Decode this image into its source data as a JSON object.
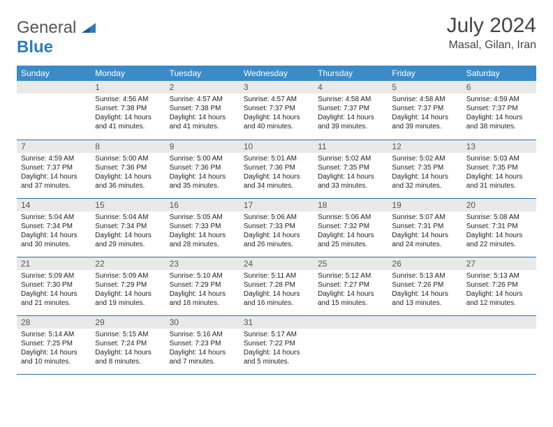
{
  "brand": {
    "part1": "General",
    "part2": "Blue"
  },
  "title": "July 2024",
  "location": "Masal, Gilan, Iran",
  "colors": {
    "header_bg": "#3b8bc9",
    "header_text": "#ffffff",
    "daynum_bg": "#e9e9e9",
    "row_divider": "#2a6ea5",
    "brand_blue": "#2f7bbf",
    "text": "#222222"
  },
  "weekdays": [
    "Sunday",
    "Monday",
    "Tuesday",
    "Wednesday",
    "Thursday",
    "Friday",
    "Saturday"
  ],
  "weeks": [
    [
      null,
      {
        "n": "1",
        "sr": "4:56 AM",
        "ss": "7:38 PM",
        "dl": "14 hours and 41 minutes."
      },
      {
        "n": "2",
        "sr": "4:57 AM",
        "ss": "7:38 PM",
        "dl": "14 hours and 41 minutes."
      },
      {
        "n": "3",
        "sr": "4:57 AM",
        "ss": "7:37 PM",
        "dl": "14 hours and 40 minutes."
      },
      {
        "n": "4",
        "sr": "4:58 AM",
        "ss": "7:37 PM",
        "dl": "14 hours and 39 minutes."
      },
      {
        "n": "5",
        "sr": "4:58 AM",
        "ss": "7:37 PM",
        "dl": "14 hours and 39 minutes."
      },
      {
        "n": "6",
        "sr": "4:59 AM",
        "ss": "7:37 PM",
        "dl": "14 hours and 38 minutes."
      }
    ],
    [
      {
        "n": "7",
        "sr": "4:59 AM",
        "ss": "7:37 PM",
        "dl": "14 hours and 37 minutes."
      },
      {
        "n": "8",
        "sr": "5:00 AM",
        "ss": "7:36 PM",
        "dl": "14 hours and 36 minutes."
      },
      {
        "n": "9",
        "sr": "5:00 AM",
        "ss": "7:36 PM",
        "dl": "14 hours and 35 minutes."
      },
      {
        "n": "10",
        "sr": "5:01 AM",
        "ss": "7:36 PM",
        "dl": "14 hours and 34 minutes."
      },
      {
        "n": "11",
        "sr": "5:02 AM",
        "ss": "7:35 PM",
        "dl": "14 hours and 33 minutes."
      },
      {
        "n": "12",
        "sr": "5:02 AM",
        "ss": "7:35 PM",
        "dl": "14 hours and 32 minutes."
      },
      {
        "n": "13",
        "sr": "5:03 AM",
        "ss": "7:35 PM",
        "dl": "14 hours and 31 minutes."
      }
    ],
    [
      {
        "n": "14",
        "sr": "5:04 AM",
        "ss": "7:34 PM",
        "dl": "14 hours and 30 minutes."
      },
      {
        "n": "15",
        "sr": "5:04 AM",
        "ss": "7:34 PM",
        "dl": "14 hours and 29 minutes."
      },
      {
        "n": "16",
        "sr": "5:05 AM",
        "ss": "7:33 PM",
        "dl": "14 hours and 28 minutes."
      },
      {
        "n": "17",
        "sr": "5:06 AM",
        "ss": "7:33 PM",
        "dl": "14 hours and 26 minutes."
      },
      {
        "n": "18",
        "sr": "5:06 AM",
        "ss": "7:32 PM",
        "dl": "14 hours and 25 minutes."
      },
      {
        "n": "19",
        "sr": "5:07 AM",
        "ss": "7:31 PM",
        "dl": "14 hours and 24 minutes."
      },
      {
        "n": "20",
        "sr": "5:08 AM",
        "ss": "7:31 PM",
        "dl": "14 hours and 22 minutes."
      }
    ],
    [
      {
        "n": "21",
        "sr": "5:09 AM",
        "ss": "7:30 PM",
        "dl": "14 hours and 21 minutes."
      },
      {
        "n": "22",
        "sr": "5:09 AM",
        "ss": "7:29 PM",
        "dl": "14 hours and 19 minutes."
      },
      {
        "n": "23",
        "sr": "5:10 AM",
        "ss": "7:29 PM",
        "dl": "14 hours and 18 minutes."
      },
      {
        "n": "24",
        "sr": "5:11 AM",
        "ss": "7:28 PM",
        "dl": "14 hours and 16 minutes."
      },
      {
        "n": "25",
        "sr": "5:12 AM",
        "ss": "7:27 PM",
        "dl": "14 hours and 15 minutes."
      },
      {
        "n": "26",
        "sr": "5:13 AM",
        "ss": "7:26 PM",
        "dl": "14 hours and 13 minutes."
      },
      {
        "n": "27",
        "sr": "5:13 AM",
        "ss": "7:26 PM",
        "dl": "14 hours and 12 minutes."
      }
    ],
    [
      {
        "n": "28",
        "sr": "5:14 AM",
        "ss": "7:25 PM",
        "dl": "14 hours and 10 minutes."
      },
      {
        "n": "29",
        "sr": "5:15 AM",
        "ss": "7:24 PM",
        "dl": "14 hours and 8 minutes."
      },
      {
        "n": "30",
        "sr": "5:16 AM",
        "ss": "7:23 PM",
        "dl": "14 hours and 7 minutes."
      },
      {
        "n": "31",
        "sr": "5:17 AM",
        "ss": "7:22 PM",
        "dl": "14 hours and 5 minutes."
      },
      null,
      null,
      null
    ]
  ],
  "labels": {
    "sunrise": "Sunrise:",
    "sunset": "Sunset:",
    "daylight": "Daylight:"
  }
}
